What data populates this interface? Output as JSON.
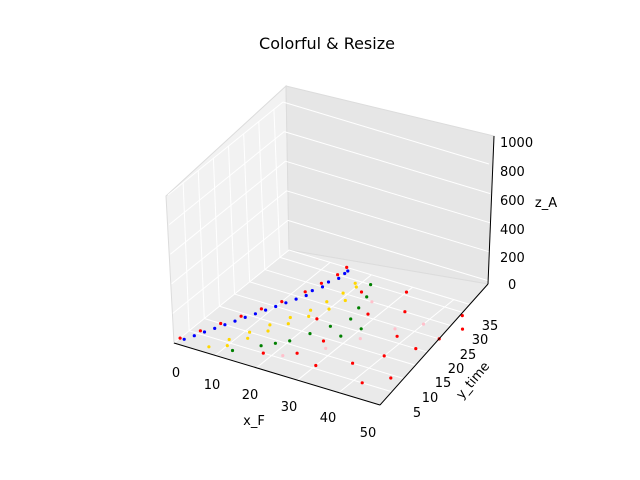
{
  "chart_data": {
    "type": "scatter",
    "projection": "3d",
    "title": "Colorful & Resize",
    "xlabel": "x_F",
    "ylabel": "y_time",
    "zlabel": "z_A",
    "xlim": [
      0,
      50
    ],
    "ylim": [
      0,
      38
    ],
    "zlim": [
      0,
      1000
    ],
    "x_ticks": [
      "0",
      "10",
      "20",
      "30",
      "40",
      "50"
    ],
    "y_ticks": [
      "5",
      "10",
      "15",
      "20",
      "25",
      "30",
      "35"
    ],
    "z_ticks": [
      "0",
      "200",
      "400",
      "600",
      "800",
      "1000"
    ],
    "grid": true,
    "series": [
      {
        "color": "#0000ff",
        "description_values": "dense band along x ≈ 0–15, z ≈ 0",
        "points": [
          [
            1,
            2,
            0
          ],
          [
            3,
            6,
            0
          ],
          [
            5,
            10,
            0
          ],
          [
            7,
            14,
            0
          ],
          [
            9,
            18,
            0
          ],
          [
            11,
            22,
            0
          ],
          [
            13,
            26,
            0
          ],
          [
            14,
            30,
            0
          ],
          [
            15,
            34,
            0
          ],
          [
            15,
            37,
            0
          ],
          [
            2,
            4,
            0
          ],
          [
            4,
            8,
            0
          ],
          [
            6,
            12,
            0
          ],
          [
            8,
            16,
            0
          ],
          [
            10,
            20,
            0
          ],
          [
            12,
            24,
            0
          ],
          [
            13,
            28,
            0
          ],
          [
            14,
            32,
            0
          ],
          [
            15,
            36,
            0
          ]
        ]
      },
      {
        "color": "#ff0000",
        "points": [
          [
            0,
            2,
            0
          ],
          [
            2,
            6,
            0
          ],
          [
            4,
            10,
            0
          ],
          [
            6,
            14,
            0
          ],
          [
            8,
            18,
            0
          ],
          [
            10,
            22,
            0
          ],
          [
            12,
            27,
            0
          ],
          [
            13,
            31,
            0
          ],
          [
            14,
            35,
            0
          ],
          [
            14,
            38,
            0
          ],
          [
            18,
            5,
            0
          ],
          [
            24,
            8,
            0
          ],
          [
            30,
            6,
            0
          ],
          [
            36,
            10,
            0
          ],
          [
            42,
            5,
            0
          ],
          [
            46,
            9,
            0
          ],
          [
            40,
            15,
            0
          ],
          [
            44,
            20,
            0
          ],
          [
            46,
            25,
            0
          ],
          [
            48,
            30,
            0
          ],
          [
            45,
            34,
            0
          ],
          [
            38,
            22,
            0
          ],
          [
            34,
            30,
            0
          ],
          [
            30,
            36,
            0
          ],
          [
            26,
            14,
            0
          ],
          [
            20,
            20,
            0
          ],
          [
            28,
            26,
            0
          ],
          [
            22,
            32,
            0
          ]
        ]
      },
      {
        "color": "#ffd700",
        "points": [
          [
            7,
            2,
            0
          ],
          [
            9,
            6,
            0
          ],
          [
            11,
            10,
            0
          ],
          [
            13,
            14,
            0
          ],
          [
            15,
            18,
            0
          ],
          [
            17,
            22,
            0
          ],
          [
            18,
            26,
            0
          ],
          [
            19,
            30,
            0
          ],
          [
            19,
            34,
            0
          ],
          [
            10,
            4,
            0
          ],
          [
            12,
            8,
            0
          ],
          [
            14,
            12,
            0
          ],
          [
            16,
            16,
            0
          ],
          [
            18,
            20,
            0
          ],
          [
            20,
            24,
            0
          ],
          [
            21,
            28,
            0
          ],
          [
            20,
            33,
            0
          ]
        ]
      },
      {
        "color": "#008000",
        "points": [
          [
            12,
            3,
            0
          ],
          [
            16,
            7,
            0
          ],
          [
            20,
            11,
            0
          ],
          [
            22,
            15,
            0
          ],
          [
            24,
            19,
            0
          ],
          [
            26,
            23,
            0
          ],
          [
            25,
            27,
            0
          ],
          [
            24,
            31,
            0
          ],
          [
            18,
            9,
            0
          ],
          [
            28,
            17,
            0
          ],
          [
            30,
            21,
            0
          ],
          [
            22,
            35,
            0
          ]
        ]
      },
      {
        "color": "#ffc0cb",
        "points": [
          [
            22,
            6,
            0
          ],
          [
            28,
            12,
            0
          ],
          [
            32,
            18,
            0
          ],
          [
            36,
            24,
            0
          ],
          [
            26,
            30,
            0
          ],
          [
            40,
            28,
            0
          ]
        ]
      }
    ]
  }
}
